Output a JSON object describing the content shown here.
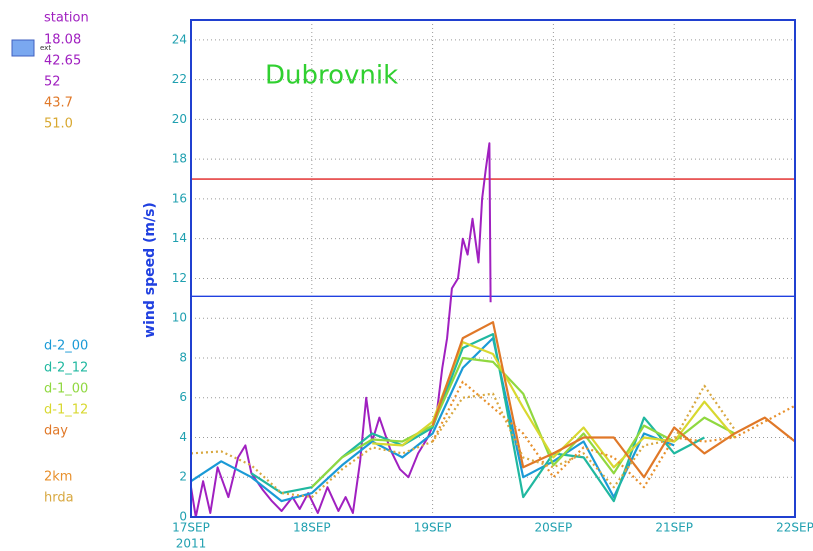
{
  "chart_data": {
    "type": "line",
    "title": "Dubrovnik",
    "ylabel": "wind speed (m/s)",
    "year_label": "2011",
    "legend_box_label": "ext",
    "station_info": [
      {
        "text": "18.08",
        "color": "#a020c0"
      },
      {
        "text": "42.65",
        "color": "#a020c0"
      },
      {
        "text": "52",
        "color": "#a020c0"
      },
      {
        "text": "43.7",
        "color": "#e07828"
      },
      {
        "text": "51.0",
        "color": "#d8a830"
      }
    ],
    "xlim": [
      17,
      22
    ],
    "xticks": [
      {
        "value": 17,
        "label": "17SEP"
      },
      {
        "value": 18,
        "label": "18SEP"
      },
      {
        "value": 19,
        "label": "19SEP"
      },
      {
        "value": 20,
        "label": "20SEP"
      },
      {
        "value": 21,
        "label": "21SEP"
      },
      {
        "value": 22,
        "label": "22SEP"
      }
    ],
    "ylim": [
      0,
      25
    ],
    "yticks": [
      0,
      2,
      4,
      6,
      8,
      10,
      12,
      14,
      16,
      18,
      20,
      22,
      24
    ],
    "grid": true,
    "thresholds": [
      {
        "value": 17,
        "color": "#e02020"
      },
      {
        "value": 11.1,
        "color": "#2040e0"
      }
    ],
    "x": [
      17,
      17.25,
      17.5,
      17.75,
      18,
      18.25,
      18.5,
      18.75,
      19,
      19.25,
      19.5,
      19.75,
      20,
      20.25,
      20.5,
      20.75,
      21,
      21.25,
      21.5,
      21.75,
      22
    ],
    "series": [
      {
        "name": "station",
        "color": "#a020c0",
        "x": [
          17.0,
          17.04,
          17.1,
          17.16,
          17.22,
          17.31,
          17.39,
          17.45,
          17.5,
          17.59,
          17.67,
          17.75,
          17.84,
          17.9,
          17.97,
          18.05,
          18.13,
          18.22,
          18.28,
          18.34,
          18.4,
          18.45,
          18.5,
          18.56,
          18.65,
          18.73,
          18.8,
          18.88,
          18.96,
          19.03,
          19.08,
          19.12,
          19.16,
          19.21,
          19.25,
          19.29,
          19.33,
          19.38,
          19.41,
          19.44,
          19.47,
          19.48
        ],
        "values": [
          1.5,
          0,
          1.8,
          0.2,
          2.5,
          1.0,
          3.0,
          3.6,
          2.2,
          1.4,
          0.8,
          0.3,
          1.0,
          0.4,
          1.2,
          0.2,
          1.5,
          0.3,
          1.0,
          0.2,
          2.8,
          6.0,
          3.8,
          5.0,
          3.4,
          2.4,
          2.0,
          3.2,
          4.0,
          5.0,
          7.5,
          9.0,
          11.5,
          12.0,
          14.0,
          13.2,
          15.0,
          12.8,
          16.0,
          17.5,
          18.8,
          10.8
        ]
      },
      {
        "name": "d-2_00",
        "color": "#1a9ad6",
        "values": [
          1.8,
          2.8,
          2.0,
          0.8,
          1.2,
          2.6,
          3.8,
          3.0,
          4.2,
          7.5,
          9.0,
          2.0,
          2.8,
          3.8,
          1.0,
          4.2,
          3.6,
          null,
          null,
          null,
          null
        ]
      },
      {
        "name": "d-2_12",
        "color": "#20b8a0",
        "values": [
          null,
          null,
          2.2,
          1.2,
          1.5,
          3.0,
          4.2,
          3.6,
          4.5,
          8.5,
          9.2,
          1.0,
          3.2,
          3.0,
          0.8,
          5.0,
          3.2,
          4.0,
          null,
          null,
          null
        ]
      },
      {
        "name": "d-1_00",
        "color": "#90d840",
        "values": [
          null,
          null,
          null,
          null,
          1.5,
          3.0,
          3.9,
          3.8,
          4.6,
          8.0,
          7.8,
          6.2,
          2.6,
          4.2,
          2.2,
          4.6,
          3.8,
          5.0,
          4.2,
          null,
          null
        ]
      },
      {
        "name": "d-1_12",
        "color": "#d8d830",
        "values": [
          null,
          null,
          null,
          null,
          null,
          null,
          3.7,
          3.6,
          4.8,
          8.8,
          8.2,
          5.5,
          3.0,
          4.5,
          2.5,
          4.0,
          3.8,
          5.8,
          4.0,
          null,
          null
        ]
      },
      {
        "name": "day",
        "color": "#e07828",
        "values": [
          null,
          null,
          null,
          null,
          null,
          null,
          null,
          null,
          4.6,
          9.0,
          9.8,
          2.5,
          3.2,
          4.0,
          4.0,
          2.0,
          4.5,
          3.2,
          4.2,
          5.0,
          3.8
        ]
      },
      {
        "name": "2km",
        "color": "#e8902c",
        "dashed": true,
        "values": [
          null,
          null,
          null,
          null,
          null,
          null,
          null,
          null,
          3.8,
          6.8,
          5.5,
          4.2,
          2.0,
          3.5,
          3.0,
          1.5,
          4.0,
          3.8,
          4.0,
          4.8,
          5.6
        ]
      },
      {
        "name": "hrda",
        "color": "#d8a840",
        "dashed": true,
        "values": [
          3.2,
          3.3,
          2.6,
          1.2,
          1.0,
          2.4,
          3.5,
          3.2,
          3.8,
          6.0,
          6.2,
          3.0,
          2.5,
          3.2,
          1.5,
          3.6,
          3.9,
          6.6,
          4.4,
          null,
          null
        ]
      }
    ]
  }
}
